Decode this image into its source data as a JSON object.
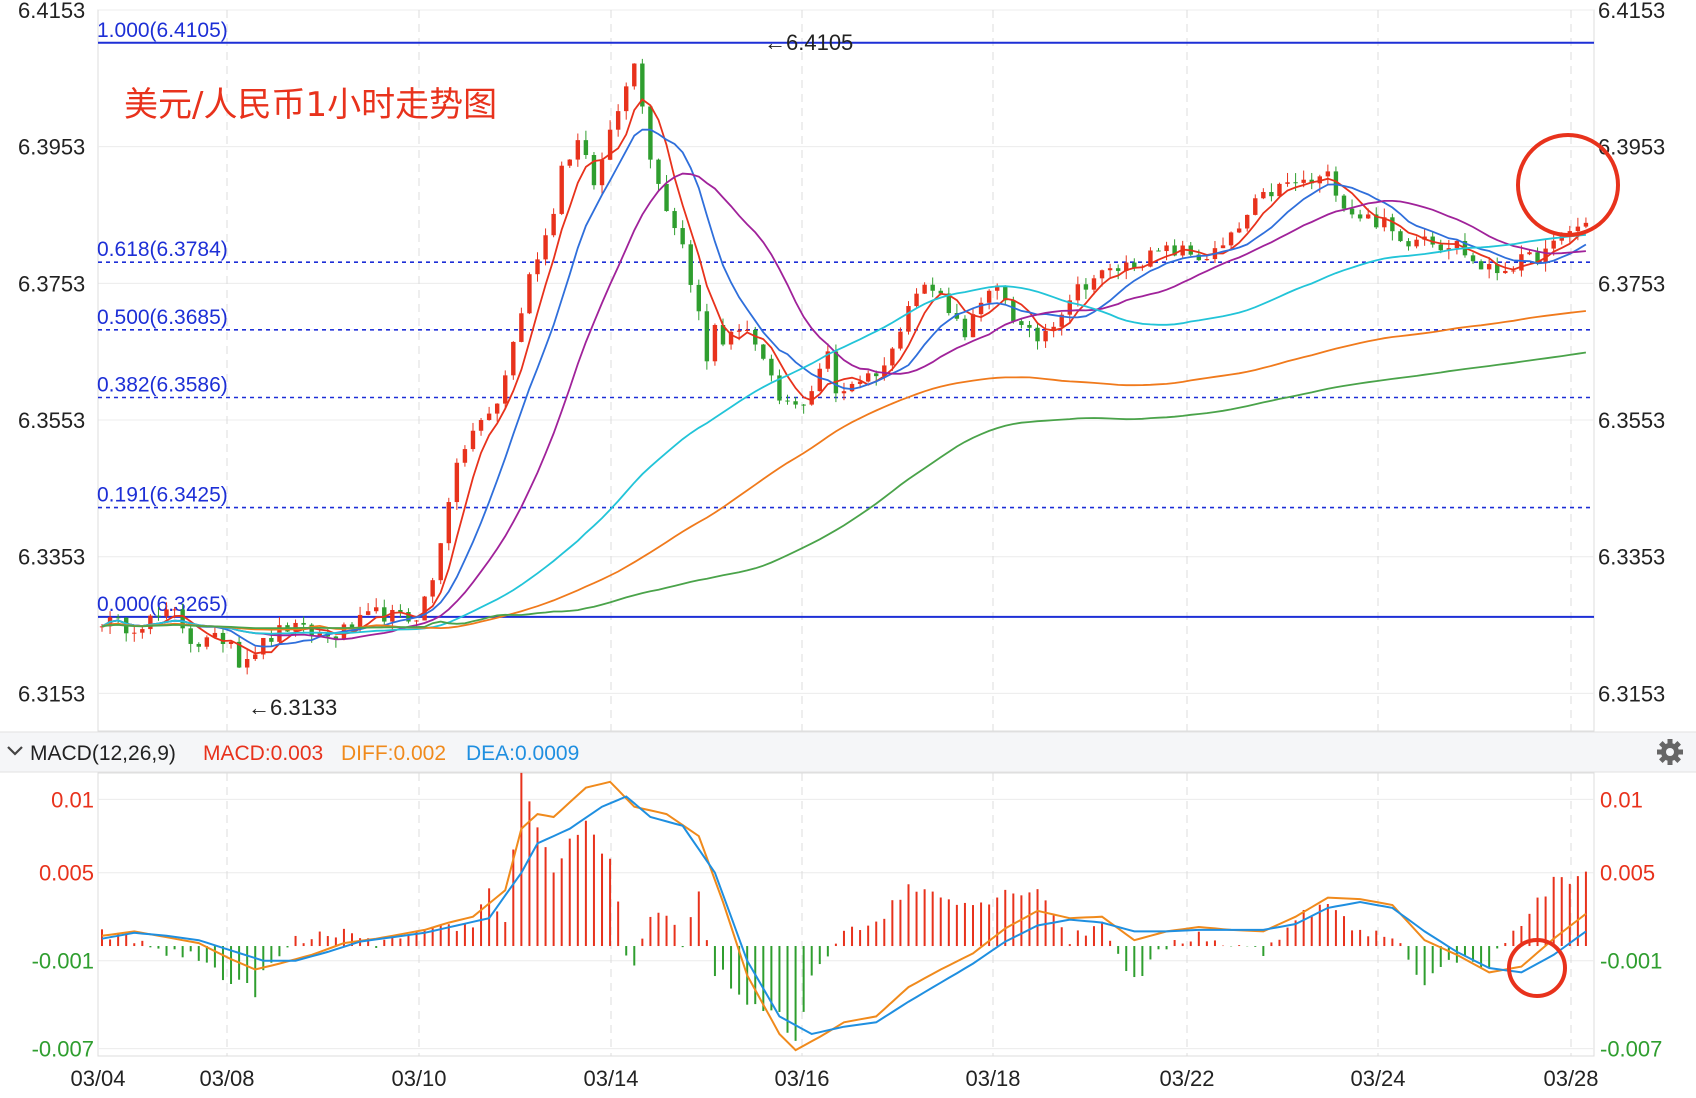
{
  "chart_data": [
    {
      "type": "candlestick",
      "title": "美元/人民币1小时走势图",
      "ylim": [
        6.3098,
        6.4153
      ],
      "y_ticks": [
        "6.4153",
        "6.3953",
        "6.3753",
        "6.3553",
        "6.3353",
        "6.3153"
      ],
      "x_ticks": [
        "03/04",
        "03/08",
        "03/10",
        "03/14",
        "03/16",
        "03/18",
        "03/22",
        "03/24",
        "03/28"
      ],
      "fib_levels": [
        {
          "label": "1.000(6.4105)",
          "value": 6.4105,
          "style": "solid"
        },
        {
          "label": "0.618(6.3784)",
          "value": 6.3784,
          "style": "dashed"
        },
        {
          "label": "0.500(6.3685)",
          "value": 6.3685,
          "style": "dashed"
        },
        {
          "label": "0.382(6.3586)",
          "value": 6.3586,
          "style": "dashed"
        },
        {
          "label": "0.191(6.3425)",
          "value": 6.3425,
          "style": "dashed"
        },
        {
          "label": "0.000(6.3265)",
          "value": 6.3265,
          "style": "solid"
        }
      ],
      "annotations": [
        {
          "text": "←6.4105",
          "value": 6.4105
        },
        {
          "text": "←6.3133",
          "value": 6.3133
        }
      ],
      "key_points": [
        [
          0,
          6.326
        ],
        [
          3,
          6.325
        ],
        [
          5,
          6.326
        ],
        [
          8,
          6.327
        ],
        [
          10,
          6.3225
        ],
        [
          14,
          6.3235
        ],
        [
          15,
          6.32
        ],
        [
          20,
          6.325
        ],
        [
          25,
          6.3235
        ],
        [
          30,
          6.327
        ],
        [
          34,
          6.326
        ],
        [
          36,
          6.331
        ],
        [
          38,
          6.345
        ],
        [
          40,
          6.353
        ],
        [
          43,
          6.357
        ],
        [
          45,
          6.367
        ],
        [
          47,
          6.378
        ],
        [
          49,
          6.384
        ],
        [
          50,
          6.392
        ],
        [
          52,
          6.396
        ],
        [
          54,
          6.389
        ],
        [
          55,
          6.396
        ],
        [
          57,
          6.404
        ],
        [
          58,
          6.408
        ],
        [
          59,
          6.402
        ],
        [
          60,
          6.393
        ],
        [
          61,
          6.389
        ],
        [
          62,
          6.385
        ],
        [
          63,
          6.383
        ],
        [
          65,
          6.372
        ],
        [
          66,
          6.3635
        ],
        [
          67,
          6.37
        ],
        [
          68,
          6.366
        ],
        [
          70,
          6.37
        ],
        [
          72,
          6.364
        ],
        [
          74,
          6.358
        ],
        [
          76,
          6.357
        ],
        [
          78,
          6.361
        ],
        [
          79,
          6.3665
        ],
        [
          80,
          6.359
        ],
        [
          82,
          6.361
        ],
        [
          84,
          6.362
        ],
        [
          86,
          6.364
        ],
        [
          88,
          6.373
        ],
        [
          90,
          6.375
        ],
        [
          92,
          6.373
        ],
        [
          94,
          6.368
        ],
        [
          96,
          6.372
        ],
        [
          98,
          6.375
        ],
        [
          100,
          6.369
        ],
        [
          102,
          6.367
        ],
        [
          104,
          6.37
        ],
        [
          106,
          6.374
        ],
        [
          108,
          6.376
        ],
        [
          110,
          6.377
        ],
        [
          112,
          6.378
        ],
        [
          114,
          6.379
        ],
        [
          116,
          6.38
        ],
        [
          118,
          6.38
        ],
        [
          120,
          6.379
        ],
        [
          122,
          6.38
        ],
        [
          124,
          6.383
        ],
        [
          126,
          6.387
        ],
        [
          128,
          6.389
        ],
        [
          130,
          6.39
        ],
        [
          132,
          6.39
        ],
        [
          134,
          6.391
        ],
        [
          136,
          6.386
        ],
        [
          138,
          6.385
        ],
        [
          140,
          6.384
        ],
        [
          142,
          6.381
        ],
        [
          144,
          6.383
        ],
        [
          146,
          6.381
        ],
        [
          148,
          6.381
        ],
        [
          150,
          6.378
        ],
        [
          152,
          6.377
        ],
        [
          154,
          6.378
        ],
        [
          156,
          6.379
        ],
        [
          158,
          6.38
        ],
        [
          160,
          6.383
        ],
        [
          162,
          6.384
        ]
      ],
      "x_label_positions": [
        0,
        22,
        38,
        53,
        64,
        81,
        101,
        115,
        162
      ],
      "series": [
        {
          "name": "",
          "color": "#e8321c",
          "ma": 5
        },
        {
          "name": "",
          "color": "#2f6fdb",
          "ma": 10
        },
        {
          "name": "",
          "color": "#a0229a",
          "ma": 20
        },
        {
          "name": "",
          "color": "#22c4d8",
          "ma": 60
        },
        {
          "name": "",
          "color": "#f07a1c",
          "ma": 120
        },
        {
          "name": "",
          "color": "#4aa34a",
          "ma": 200
        }
      ]
    },
    {
      "type": "macd",
      "legend": {
        "name": "MACD(12,26,9)",
        "macd": "MACD:0.003",
        "diff": "DIFF:0.002",
        "dea": "DEA:0.0009"
      },
      "ylim": [
        -0.0075,
        0.0118
      ],
      "y_ticks": [
        "0.01",
        "0.005",
        "-0.001",
        "-0.007"
      ],
      "y_tick_values": [
        0.01,
        0.005,
        -0.001,
        -0.007
      ],
      "diff_key_points": [
        [
          0,
          0.0007
        ],
        [
          4,
          0.001
        ],
        [
          8,
          0.0006
        ],
        [
          12,
          0.0002
        ],
        [
          16,
          -0.0009
        ],
        [
          19,
          -0.0016
        ],
        [
          22,
          -0.0012
        ],
        [
          26,
          -0.0006
        ],
        [
          30,
          0.0002
        ],
        [
          34,
          0.0005
        ],
        [
          37,
          0.0008
        ],
        [
          40,
          0.0011
        ],
        [
          43,
          0.0016
        ],
        [
          46,
          0.002
        ],
        [
          50,
          0.0038
        ],
        [
          52,
          0.008
        ],
        [
          54,
          0.009
        ],
        [
          56,
          0.0088
        ],
        [
          60,
          0.0108
        ],
        [
          63,
          0.0112
        ],
        [
          66,
          0.0095
        ],
        [
          70,
          0.009
        ],
        [
          74,
          0.0075
        ],
        [
          77,
          0.003
        ],
        [
          80,
          -0.002
        ],
        [
          84,
          -0.006
        ],
        [
          86,
          -0.0071
        ],
        [
          89,
          -0.0062
        ],
        [
          92,
          -0.0052
        ],
        [
          96,
          -0.0048
        ],
        [
          100,
          -0.0028
        ],
        [
          104,
          -0.0016
        ],
        [
          108,
          -0.0005
        ],
        [
          112,
          0.0012
        ],
        [
          116,
          0.0024
        ],
        [
          120,
          0.0019
        ],
        [
          124,
          0.002
        ],
        [
          128,
          0.0004
        ],
        [
          132,
          0.001
        ],
        [
          136,
          0.0013
        ],
        [
          140,
          0.0011
        ],
        [
          144,
          0.001
        ],
        [
          148,
          0.002
        ],
        [
          152,
          0.0033
        ],
        [
          156,
          0.0032
        ],
        [
          160,
          0.0028
        ],
        [
          164,
          0.0004
        ],
        [
          168,
          -0.0006
        ],
        [
          172,
          -0.0018
        ],
        [
          176,
          -0.0014
        ],
        [
          180,
          0.0005
        ],
        [
          184,
          0.0022
        ]
      ],
      "dea_key_points": [
        [
          0,
          0.0005
        ],
        [
          4,
          0.0009
        ],
        [
          8,
          0.0007
        ],
        [
          12,
          0.0004
        ],
        [
          16,
          -0.0003
        ],
        [
          20,
          -0.001
        ],
        [
          24,
          -0.001
        ],
        [
          28,
          -0.0004
        ],
        [
          32,
          0.0003
        ],
        [
          36,
          0.0006
        ],
        [
          40,
          0.0009
        ],
        [
          44,
          0.0014
        ],
        [
          48,
          0.0019
        ],
        [
          52,
          0.005
        ],
        [
          54,
          0.007
        ],
        [
          58,
          0.008
        ],
        [
          62,
          0.0095
        ],
        [
          65,
          0.0102
        ],
        [
          68,
          0.0088
        ],
        [
          72,
          0.0082
        ],
        [
          76,
          0.005
        ],
        [
          80,
          -0.001
        ],
        [
          84,
          -0.0048
        ],
        [
          88,
          -0.006
        ],
        [
          92,
          -0.0055
        ],
        [
          96,
          -0.0052
        ],
        [
          100,
          -0.0038
        ],
        [
          104,
          -0.0025
        ],
        [
          108,
          -0.0012
        ],
        [
          112,
          0.0003
        ],
        [
          116,
          0.0014
        ],
        [
          120,
          0.0018
        ],
        [
          124,
          0.0016
        ],
        [
          128,
          0.001
        ],
        [
          132,
          0.001
        ],
        [
          136,
          0.0011
        ],
        [
          140,
          0.0011
        ],
        [
          144,
          0.0011
        ],
        [
          148,
          0.0015
        ],
        [
          152,
          0.0026
        ],
        [
          156,
          0.003
        ],
        [
          160,
          0.0026
        ],
        [
          164,
          0.001
        ],
        [
          168,
          -0.0004
        ],
        [
          172,
          -0.0015
        ],
        [
          176,
          -0.0018
        ],
        [
          180,
          -0.0006
        ],
        [
          184,
          0.001
        ]
      ]
    }
  ]
}
